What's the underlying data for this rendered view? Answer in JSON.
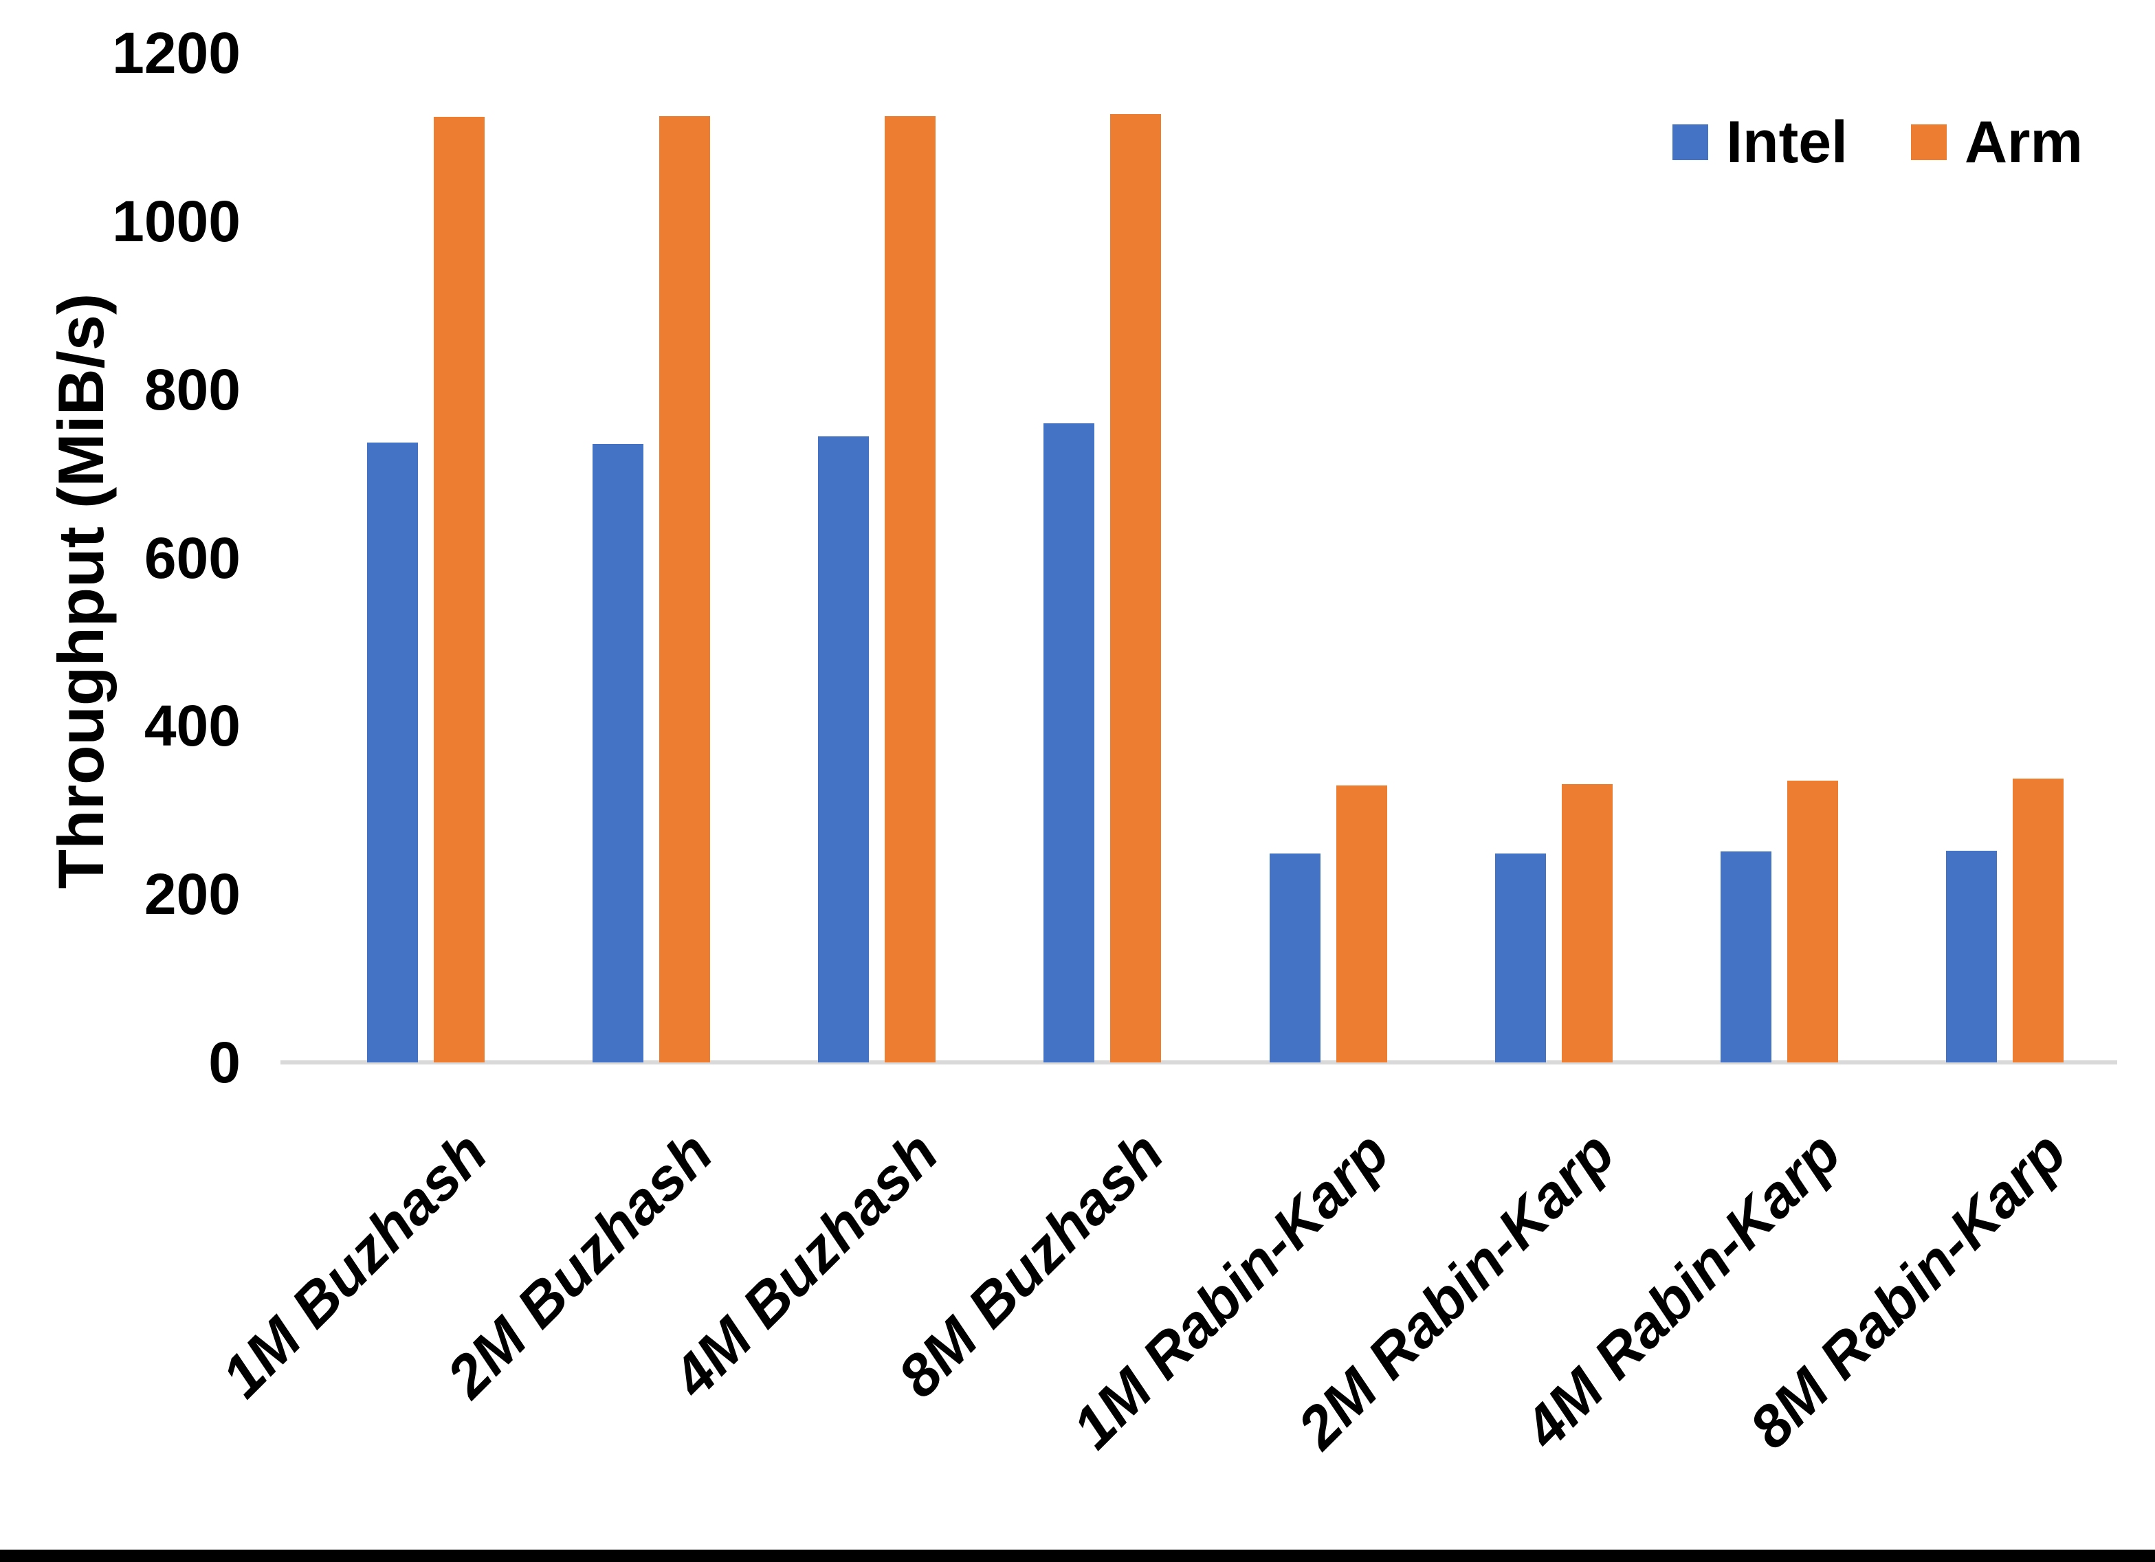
{
  "chart_data": {
    "type": "bar",
    "ylabel": "Throughput (MiB/s)",
    "xlabel": "",
    "ylim": [
      0,
      1200
    ],
    "yticks": [
      0,
      200,
      400,
      600,
      800,
      1000,
      1200
    ],
    "grid": false,
    "legend_position": "top-right",
    "categories": [
      "1M Buzhash",
      "2M Buzhash",
      "4M Buzhash",
      "8M Buzhash",
      "1M Rabin-Karp",
      "2M Rabin-Karp",
      "4M Rabin-Karp",
      "8M Rabin-Karp"
    ],
    "series": [
      {
        "name": "Intel",
        "color": "#4472C4",
        "values": [
          737,
          735,
          744,
          760,
          248,
          248,
          251,
          252
        ]
      },
      {
        "name": "Arm",
        "color": "#ED7D31",
        "values": [
          1124,
          1125,
          1125,
          1127,
          329,
          331,
          335,
          337
        ]
      }
    ]
  },
  "colors": {
    "axis_line": "#D9D9D9",
    "bottom_border": "#000000",
    "background": "#FFFFFF"
  }
}
